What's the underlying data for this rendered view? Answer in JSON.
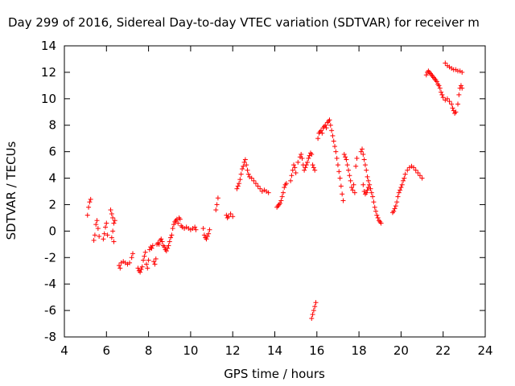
{
  "chart_data": {
    "type": "scatter",
    "title": "Day 299 of 2016, Sidereal Day-to-day VTEC variation (SDTVAR) for receiver m",
    "xlabel": "GPS time / hours",
    "ylabel": "SDTVAR / TECUs",
    "xlim": [
      4,
      24
    ],
    "ylim": [
      -8,
      14
    ],
    "xticks": [
      4,
      6,
      8,
      10,
      12,
      14,
      16,
      18,
      20,
      22,
      24
    ],
    "yticks": [
      -8,
      -6,
      -4,
      -2,
      0,
      2,
      4,
      6,
      8,
      10,
      12,
      14
    ],
    "marker": "+",
    "color": "#ff0000",
    "grid": false,
    "series": [
      {
        "name": "SDTVAR",
        "points": [
          [
            5.1,
            1.2
          ],
          [
            5.15,
            1.8
          ],
          [
            5.2,
            2.2
          ],
          [
            5.25,
            2.4
          ],
          [
            5.4,
            -0.7
          ],
          [
            5.45,
            -0.3
          ],
          [
            5.5,
            0.5
          ],
          [
            5.55,
            0.8
          ],
          [
            5.6,
            0.2
          ],
          [
            5.65,
            -0.4
          ],
          [
            5.85,
            -0.6
          ],
          [
            5.9,
            -0.2
          ],
          [
            5.95,
            0.3
          ],
          [
            6.0,
            0.6
          ],
          [
            6.05,
            -0.3
          ],
          [
            6.2,
            1.6
          ],
          [
            6.25,
            1.3
          ],
          [
            6.3,
            1.0
          ],
          [
            6.35,
            0.6
          ],
          [
            6.4,
            0.8
          ],
          [
            6.3,
            0.0
          ],
          [
            6.25,
            -0.5
          ],
          [
            6.35,
            -0.8
          ],
          [
            6.6,
            -2.6
          ],
          [
            6.65,
            -2.8
          ],
          [
            6.7,
            -2.4
          ],
          [
            6.8,
            -2.3
          ],
          [
            6.9,
            -2.4
          ],
          [
            7.0,
            -2.5
          ],
          [
            7.1,
            -2.4
          ],
          [
            7.2,
            -2.0
          ],
          [
            7.25,
            -1.7
          ],
          [
            7.5,
            -2.8
          ],
          [
            7.55,
            -3.0
          ],
          [
            7.6,
            -3.1
          ],
          [
            7.65,
            -2.9
          ],
          [
            7.7,
            -2.7
          ],
          [
            7.75,
            -2.2
          ],
          [
            7.8,
            -1.9
          ],
          [
            7.85,
            -1.6
          ],
          [
            7.9,
            -2.5
          ],
          [
            7.95,
            -2.8
          ],
          [
            8.0,
            -2.2
          ],
          [
            8.05,
            -1.4
          ],
          [
            8.1,
            -1.2
          ],
          [
            8.15,
            -1.3
          ],
          [
            8.2,
            -1.1
          ],
          [
            8.25,
            -2.3
          ],
          [
            8.3,
            -2.5
          ],
          [
            8.35,
            -2.1
          ],
          [
            8.4,
            -1.0
          ],
          [
            8.45,
            -0.9
          ],
          [
            8.5,
            -1.0
          ],
          [
            8.55,
            -0.7
          ],
          [
            8.6,
            -0.6
          ],
          [
            8.65,
            -0.8
          ],
          [
            8.7,
            -1.1
          ],
          [
            8.75,
            -1.2
          ],
          [
            8.8,
            -1.4
          ],
          [
            8.85,
            -1.5
          ],
          [
            8.9,
            -1.3
          ],
          [
            8.95,
            -1.1
          ],
          [
            9.0,
            -0.8
          ],
          [
            9.05,
            -0.5
          ],
          [
            9.1,
            -0.3
          ],
          [
            9.15,
            0.2
          ],
          [
            9.2,
            0.5
          ],
          [
            9.25,
            0.7
          ],
          [
            9.3,
            0.8
          ],
          [
            9.35,
            0.9
          ],
          [
            9.4,
            0.6
          ],
          [
            9.45,
            1.0
          ],
          [
            9.5,
            0.9
          ],
          [
            9.55,
            0.4
          ],
          [
            9.6,
            0.3
          ],
          [
            9.7,
            0.2
          ],
          [
            9.8,
            0.3
          ],
          [
            9.9,
            0.2
          ],
          [
            10.0,
            0.1
          ],
          [
            10.1,
            0.2
          ],
          [
            10.2,
            0.3
          ],
          [
            10.25,
            0.1
          ],
          [
            10.6,
            0.2
          ],
          [
            10.65,
            -0.3
          ],
          [
            10.7,
            -0.5
          ],
          [
            10.75,
            -0.6
          ],
          [
            10.8,
            -0.4
          ],
          [
            10.85,
            -0.2
          ],
          [
            10.9,
            0.1
          ],
          [
            11.2,
            1.6
          ],
          [
            11.25,
            2.0
          ],
          [
            11.3,
            2.5
          ],
          [
            11.7,
            1.2
          ],
          [
            11.75,
            1.0
          ],
          [
            11.8,
            1.1
          ],
          [
            11.9,
            1.3
          ],
          [
            12.0,
            1.1
          ],
          [
            12.2,
            3.2
          ],
          [
            12.25,
            3.4
          ],
          [
            12.3,
            3.6
          ],
          [
            12.35,
            3.9
          ],
          [
            12.4,
            4.3
          ],
          [
            12.45,
            4.7
          ],
          [
            12.5,
            4.9
          ],
          [
            12.55,
            5.2
          ],
          [
            12.6,
            5.4
          ],
          [
            12.65,
            5.0
          ],
          [
            12.7,
            4.6
          ],
          [
            12.75,
            4.3
          ],
          [
            12.8,
            4.1
          ],
          [
            12.9,
            4.0
          ],
          [
            13.0,
            3.8
          ],
          [
            13.1,
            3.6
          ],
          [
            13.2,
            3.4
          ],
          [
            13.3,
            3.2
          ],
          [
            13.4,
            3.0
          ],
          [
            13.5,
            3.1
          ],
          [
            13.6,
            3.0
          ],
          [
            13.7,
            2.9
          ],
          [
            14.1,
            1.8
          ],
          [
            14.15,
            1.9
          ],
          [
            14.2,
            2.0
          ],
          [
            14.25,
            2.1
          ],
          [
            14.3,
            2.3
          ],
          [
            14.35,
            2.6
          ],
          [
            14.4,
            2.9
          ],
          [
            14.45,
            3.3
          ],
          [
            14.5,
            3.5
          ],
          [
            14.55,
            3.6
          ],
          [
            14.75,
            3.8
          ],
          [
            14.8,
            4.2
          ],
          [
            14.85,
            4.6
          ],
          [
            14.9,
            5.0
          ],
          [
            14.95,
            4.8
          ],
          [
            15.0,
            4.4
          ],
          [
            15.1,
            5.2
          ],
          [
            15.2,
            5.6
          ],
          [
            15.25,
            5.8
          ],
          [
            15.3,
            5.5
          ],
          [
            15.35,
            5.0
          ],
          [
            15.4,
            4.6
          ],
          [
            15.45,
            4.8
          ],
          [
            15.5,
            5.0
          ],
          [
            15.55,
            5.2
          ],
          [
            15.6,
            5.5
          ],
          [
            15.65,
            5.7
          ],
          [
            15.7,
            5.9
          ],
          [
            15.75,
            5.8
          ],
          [
            15.8,
            5.0
          ],
          [
            15.85,
            4.8
          ],
          [
            15.9,
            4.6
          ],
          [
            15.75,
            -6.6
          ],
          [
            15.8,
            -6.3
          ],
          [
            15.85,
            -6.0
          ],
          [
            15.9,
            -5.7
          ],
          [
            15.95,
            -5.4
          ],
          [
            16.05,
            7.0
          ],
          [
            16.1,
            7.4
          ],
          [
            16.15,
            7.5
          ],
          [
            16.2,
            7.6
          ],
          [
            16.25,
            7.4
          ],
          [
            16.3,
            7.8
          ],
          [
            16.35,
            7.9
          ],
          [
            16.4,
            8.0
          ],
          [
            16.45,
            7.8
          ],
          [
            16.5,
            8.2
          ],
          [
            16.55,
            8.3
          ],
          [
            16.6,
            8.4
          ],
          [
            16.65,
            8.0
          ],
          [
            16.7,
            7.6
          ],
          [
            16.75,
            7.2
          ],
          [
            16.8,
            6.8
          ],
          [
            16.85,
            6.4
          ],
          [
            16.9,
            6.0
          ],
          [
            16.95,
            5.5
          ],
          [
            17.0,
            5.0
          ],
          [
            17.05,
            4.5
          ],
          [
            17.1,
            4.0
          ],
          [
            17.15,
            3.4
          ],
          [
            17.2,
            2.8
          ],
          [
            17.25,
            2.3
          ],
          [
            17.3,
            5.8
          ],
          [
            17.35,
            5.6
          ],
          [
            17.4,
            5.4
          ],
          [
            17.45,
            5.0
          ],
          [
            17.5,
            4.6
          ],
          [
            17.55,
            4.2
          ],
          [
            17.6,
            3.8
          ],
          [
            17.65,
            3.3
          ],
          [
            17.7,
            3.1
          ],
          [
            17.75,
            3.5
          ],
          [
            17.8,
            2.9
          ],
          [
            17.85,
            4.9
          ],
          [
            17.9,
            5.5
          ],
          [
            18.1,
            6.0
          ],
          [
            18.15,
            6.2
          ],
          [
            18.2,
            5.8
          ],
          [
            18.25,
            5.4
          ],
          [
            18.3,
            5.0
          ],
          [
            18.35,
            4.6
          ],
          [
            18.4,
            4.1
          ],
          [
            18.45,
            3.8
          ],
          [
            18.5,
            3.5
          ],
          [
            18.55,
            3.2
          ],
          [
            18.6,
            2.9
          ],
          [
            18.65,
            2.6
          ],
          [
            18.2,
            3.5
          ],
          [
            18.25,
            3.0
          ],
          [
            18.3,
            2.8
          ],
          [
            18.35,
            2.9
          ],
          [
            18.4,
            3.1
          ],
          [
            18.45,
            3.3
          ],
          [
            18.7,
            2.2
          ],
          [
            18.75,
            1.8
          ],
          [
            18.8,
            1.5
          ],
          [
            18.85,
            1.2
          ],
          [
            18.9,
            1.0
          ],
          [
            18.95,
            0.8
          ],
          [
            19.0,
            0.7
          ],
          [
            19.05,
            0.6
          ],
          [
            19.6,
            1.4
          ],
          [
            19.65,
            1.5
          ],
          [
            19.7,
            1.7
          ],
          [
            19.75,
            1.9
          ],
          [
            19.8,
            2.2
          ],
          [
            19.85,
            2.6
          ],
          [
            19.9,
            2.9
          ],
          [
            19.95,
            3.1
          ],
          [
            20.0,
            3.3
          ],
          [
            20.05,
            3.5
          ],
          [
            20.1,
            3.8
          ],
          [
            20.15,
            4.0
          ],
          [
            20.2,
            4.3
          ],
          [
            20.3,
            4.6
          ],
          [
            20.4,
            4.8
          ],
          [
            20.5,
            4.9
          ],
          [
            20.6,
            4.8
          ],
          [
            20.7,
            4.6
          ],
          [
            20.8,
            4.4
          ],
          [
            20.9,
            4.2
          ],
          [
            21.0,
            4.0
          ],
          [
            21.2,
            11.8
          ],
          [
            21.25,
            12.0
          ],
          [
            21.3,
            12.1
          ],
          [
            21.35,
            12.0
          ],
          [
            21.4,
            11.9
          ],
          [
            21.45,
            11.8
          ],
          [
            21.5,
            11.7
          ],
          [
            21.55,
            11.6
          ],
          [
            21.6,
            11.5
          ],
          [
            21.65,
            11.4
          ],
          [
            21.7,
            11.3
          ],
          [
            21.75,
            11.1
          ],
          [
            21.8,
            11.0
          ],
          [
            21.85,
            10.8
          ],
          [
            21.9,
            10.5
          ],
          [
            21.95,
            10.3
          ],
          [
            22.0,
            10.1
          ],
          [
            22.1,
            9.9
          ],
          [
            22.2,
            10.0
          ],
          [
            22.3,
            9.8
          ],
          [
            22.4,
            9.6
          ],
          [
            22.45,
            9.3
          ],
          [
            22.5,
            9.1
          ],
          [
            22.55,
            8.9
          ],
          [
            22.6,
            9.0
          ],
          [
            22.7,
            9.6
          ],
          [
            22.75,
            10.3
          ],
          [
            22.8,
            10.8
          ],
          [
            22.85,
            11.0
          ],
          [
            22.9,
            10.8
          ],
          [
            22.1,
            12.7
          ],
          [
            22.2,
            12.5
          ],
          [
            22.3,
            12.4
          ],
          [
            22.4,
            12.3
          ],
          [
            22.5,
            12.2
          ],
          [
            22.6,
            12.2
          ],
          [
            22.7,
            12.1
          ],
          [
            22.8,
            12.1
          ],
          [
            22.9,
            12.0
          ]
        ]
      }
    ]
  }
}
